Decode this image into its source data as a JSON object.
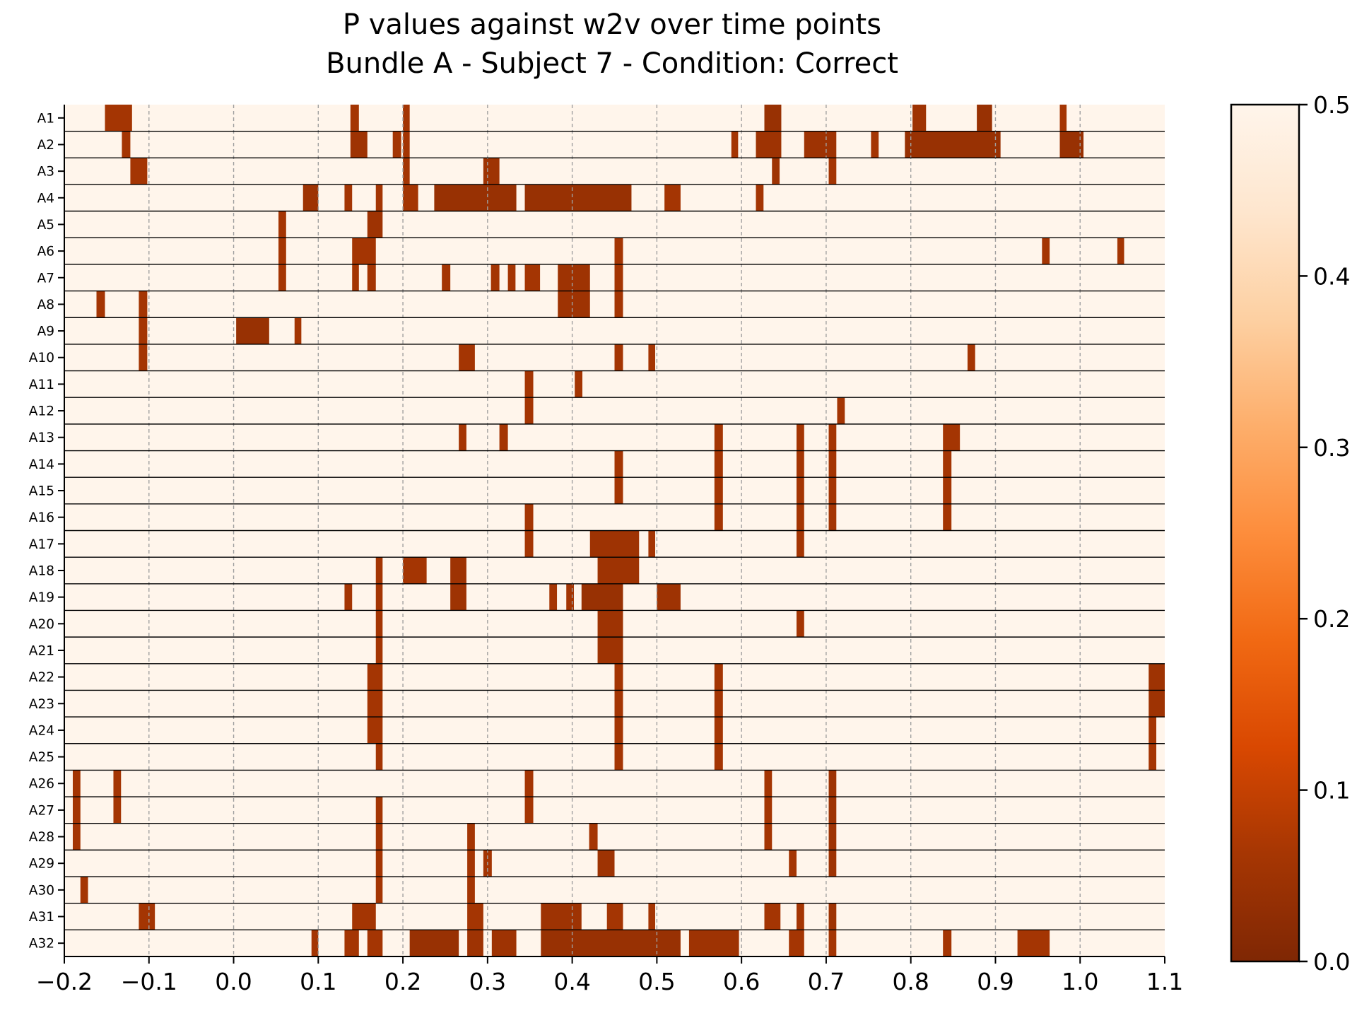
{
  "chart_data": {
    "type": "heatmap",
    "title": [
      "P values against w2v over time points",
      "Bundle A - Subject 7 - Condition: Correct"
    ],
    "xlabel": "",
    "ylabel": "",
    "xlim": [
      -0.2,
      1.1
    ],
    "x_ticks": [
      -0.2,
      -0.1,
      0.0,
      0.1,
      0.2,
      0.3,
      0.4,
      0.5,
      0.6,
      0.7,
      0.8,
      0.9,
      1.0,
      1.1
    ],
    "x_tick_labels": [
      "−0.2",
      "−0.1",
      "0.0",
      "0.1",
      "0.2",
      "0.3",
      "0.4",
      "0.5",
      "0.6",
      "0.7",
      "0.8",
      "0.9",
      "1.0",
      "1.1"
    ],
    "grid": "vertical dashed at x ticks",
    "colormap": "Oranges (reversed): dark brown = 0.0, pale cream = 0.5",
    "colorbar": {
      "range": [
        0.0,
        0.5
      ],
      "ticks": [
        0.0,
        0.1,
        0.2,
        0.3,
        0.4,
        0.5
      ],
      "tick_labels": [
        "0.0",
        "0.1",
        "0.2",
        "0.3",
        "0.4",
        "0.5"
      ],
      "colors": [
        "#7f2704",
        "#a63603",
        "#d94801",
        "#f16913",
        "#fd8d3c",
        "#fdae6b",
        "#fdd0a2",
        "#fee6ce",
        "#fff5eb"
      ]
    },
    "background_value": 0.5,
    "rows": [
      "A1",
      "A2",
      "A3",
      "A4",
      "A5",
      "A6",
      "A7",
      "A8",
      "A9",
      "A10",
      "A11",
      "A12",
      "A13",
      "A14",
      "A15",
      "A16",
      "A17",
      "A18",
      "A19",
      "A20",
      "A21",
      "A22",
      "A23",
      "A24",
      "A25",
      "A26",
      "A27",
      "A28",
      "A29",
      "A30",
      "A31",
      "A32"
    ],
    "significant_segments": {
      "A1": [
        [
          -0.152,
          -0.12,
          0.06
        ],
        [
          0.138,
          0.148,
          0.06
        ],
        [
          0.2,
          0.208,
          0.06
        ],
        [
          0.627,
          0.647,
          0.04
        ],
        [
          0.802,
          0.818,
          0.05
        ],
        [
          0.878,
          0.896,
          0.04
        ],
        [
          0.976,
          0.984,
          0.06
        ]
      ],
      "A2": [
        [
          -0.132,
          -0.122,
          0.06
        ],
        [
          0.138,
          0.158,
          0.05
        ],
        [
          0.188,
          0.198,
          0.06
        ],
        [
          0.2,
          0.208,
          0.06
        ],
        [
          0.588,
          0.596,
          0.06
        ],
        [
          0.617,
          0.647,
          0.05
        ],
        [
          0.674,
          0.712,
          0.05
        ],
        [
          0.753,
          0.762,
          0.06
        ],
        [
          0.793,
          0.906,
          0.04
        ],
        [
          0.976,
          1.004,
          0.04
        ]
      ],
      "A3": [
        [
          -0.122,
          -0.102,
          0.06
        ],
        [
          0.2,
          0.208,
          0.06
        ],
        [
          0.295,
          0.314,
          0.05
        ],
        [
          0.636,
          0.645,
          0.05
        ],
        [
          0.703,
          0.712,
          0.06
        ]
      ],
      "A4": [
        [
          0.082,
          0.1,
          0.05
        ],
        [
          0.131,
          0.14,
          0.06
        ],
        [
          0.168,
          0.176,
          0.06
        ],
        [
          0.2,
          0.218,
          0.06
        ],
        [
          0.237,
          0.334,
          0.04
        ],
        [
          0.344,
          0.47,
          0.04
        ],
        [
          0.509,
          0.528,
          0.06
        ],
        [
          0.617,
          0.626,
          0.06
        ]
      ],
      "A5": [
        [
          0.053,
          0.062,
          0.06
        ],
        [
          0.158,
          0.176,
          0.05
        ]
      ],
      "A6": [
        [
          0.053,
          0.062,
          0.06
        ],
        [
          0.14,
          0.168,
          0.06
        ],
        [
          0.45,
          0.46,
          0.06
        ],
        [
          0.955,
          0.964,
          0.06
        ],
        [
          1.044,
          1.052,
          0.06
        ]
      ],
      "A7": [
        [
          0.053,
          0.062,
          0.06
        ],
        [
          0.14,
          0.148,
          0.06
        ],
        [
          0.158,
          0.168,
          0.06
        ],
        [
          0.246,
          0.256,
          0.06
        ],
        [
          0.304,
          0.314,
          0.06
        ],
        [
          0.324,
          0.333,
          0.06
        ],
        [
          0.344,
          0.362,
          0.06
        ],
        [
          0.383,
          0.421,
          0.05
        ],
        [
          0.45,
          0.46,
          0.06
        ]
      ],
      "A8": [
        [
          -0.162,
          -0.152,
          0.06
        ],
        [
          -0.112,
          -0.102,
          0.06
        ],
        [
          0.383,
          0.421,
          0.05
        ],
        [
          0.45,
          0.46,
          0.06
        ]
      ],
      "A9": [
        [
          -0.112,
          -0.102,
          0.06
        ],
        [
          0.003,
          0.042,
          0.04
        ],
        [
          0.072,
          0.08,
          0.06
        ]
      ],
      "A10": [
        [
          -0.112,
          -0.102,
          0.06
        ],
        [
          0.266,
          0.285,
          0.06
        ],
        [
          0.45,
          0.46,
          0.06
        ],
        [
          0.49,
          0.498,
          0.06
        ],
        [
          0.867,
          0.876,
          0.06
        ]
      ],
      "A11": [
        [
          0.344,
          0.354,
          0.06
        ],
        [
          0.403,
          0.412,
          0.06
        ]
      ],
      "A12": [
        [
          0.344,
          0.354,
          0.06
        ],
        [
          0.713,
          0.722,
          0.06
        ]
      ],
      "A13": [
        [
          0.266,
          0.275,
          0.06
        ],
        [
          0.314,
          0.324,
          0.06
        ],
        [
          0.568,
          0.578,
          0.06
        ],
        [
          0.665,
          0.674,
          0.06
        ],
        [
          0.703,
          0.712,
          0.06
        ],
        [
          0.838,
          0.858,
          0.06
        ]
      ],
      "A14": [
        [
          0.45,
          0.46,
          0.06
        ],
        [
          0.568,
          0.578,
          0.06
        ],
        [
          0.665,
          0.674,
          0.06
        ],
        [
          0.703,
          0.712,
          0.06
        ],
        [
          0.838,
          0.848,
          0.06
        ]
      ],
      "A15": [
        [
          0.45,
          0.46,
          0.06
        ],
        [
          0.568,
          0.578,
          0.06
        ],
        [
          0.665,
          0.674,
          0.06
        ],
        [
          0.703,
          0.712,
          0.06
        ],
        [
          0.838,
          0.848,
          0.06
        ]
      ],
      "A16": [
        [
          0.344,
          0.354,
          0.06
        ],
        [
          0.568,
          0.578,
          0.06
        ],
        [
          0.665,
          0.674,
          0.06
        ],
        [
          0.703,
          0.712,
          0.06
        ],
        [
          0.838,
          0.848,
          0.06
        ]
      ],
      "A17": [
        [
          0.344,
          0.354,
          0.06
        ],
        [
          0.421,
          0.479,
          0.05
        ],
        [
          0.49,
          0.498,
          0.06
        ],
        [
          0.665,
          0.674,
          0.06
        ]
      ],
      "A18": [
        [
          0.168,
          0.176,
          0.06
        ],
        [
          0.2,
          0.228,
          0.06
        ],
        [
          0.256,
          0.275,
          0.05
        ],
        [
          0.43,
          0.479,
          0.05
        ]
      ],
      "A19": [
        [
          0.131,
          0.14,
          0.06
        ],
        [
          0.168,
          0.176,
          0.06
        ],
        [
          0.256,
          0.275,
          0.05
        ],
        [
          0.373,
          0.382,
          0.06
        ],
        [
          0.393,
          0.402,
          0.06
        ],
        [
          0.411,
          0.46,
          0.04
        ],
        [
          0.5,
          0.528,
          0.05
        ]
      ],
      "A20": [
        [
          0.168,
          0.176,
          0.06
        ],
        [
          0.43,
          0.46,
          0.05
        ],
        [
          0.665,
          0.674,
          0.06
        ]
      ],
      "A21": [
        [
          0.168,
          0.176,
          0.06
        ],
        [
          0.43,
          0.46,
          0.05
        ]
      ],
      "A22": [
        [
          0.158,
          0.176,
          0.06
        ],
        [
          0.45,
          0.46,
          0.06
        ],
        [
          0.568,
          0.578,
          0.06
        ],
        [
          1.081,
          1.1,
          0.05
        ]
      ],
      "A23": [
        [
          0.158,
          0.176,
          0.06
        ],
        [
          0.45,
          0.46,
          0.06
        ],
        [
          0.568,
          0.578,
          0.06
        ],
        [
          1.081,
          1.1,
          0.05
        ]
      ],
      "A24": [
        [
          0.158,
          0.176,
          0.06
        ],
        [
          0.45,
          0.46,
          0.06
        ],
        [
          0.568,
          0.578,
          0.06
        ],
        [
          1.081,
          1.09,
          0.06
        ]
      ],
      "A25": [
        [
          0.168,
          0.176,
          0.06
        ],
        [
          0.45,
          0.46,
          0.06
        ],
        [
          0.568,
          0.578,
          0.06
        ],
        [
          1.081,
          1.09,
          0.06
        ]
      ],
      "A26": [
        [
          -0.19,
          -0.181,
          0.06
        ],
        [
          -0.142,
          -0.133,
          0.06
        ],
        [
          0.344,
          0.354,
          0.06
        ],
        [
          0.627,
          0.636,
          0.06
        ],
        [
          0.703,
          0.712,
          0.05
        ]
      ],
      "A27": [
        [
          -0.19,
          -0.181,
          0.06
        ],
        [
          -0.142,
          -0.133,
          0.06
        ],
        [
          0.168,
          0.176,
          0.06
        ],
        [
          0.344,
          0.354,
          0.06
        ],
        [
          0.627,
          0.636,
          0.06
        ],
        [
          0.703,
          0.712,
          0.05
        ]
      ],
      "A28": [
        [
          -0.19,
          -0.181,
          0.06
        ],
        [
          0.168,
          0.176,
          0.06
        ],
        [
          0.276,
          0.285,
          0.06
        ],
        [
          0.42,
          0.43,
          0.06
        ],
        [
          0.627,
          0.636,
          0.06
        ],
        [
          0.703,
          0.712,
          0.05
        ]
      ],
      "A29": [
        [
          0.168,
          0.176,
          0.06
        ],
        [
          0.276,
          0.285,
          0.06
        ],
        [
          0.295,
          0.305,
          0.06
        ],
        [
          0.43,
          0.45,
          0.05
        ],
        [
          0.656,
          0.665,
          0.06
        ],
        [
          0.703,
          0.712,
          0.05
        ]
      ],
      "A30": [
        [
          -0.181,
          -0.172,
          0.06
        ],
        [
          0.168,
          0.176,
          0.06
        ],
        [
          0.276,
          0.285,
          0.06
        ]
      ],
      "A31": [
        [
          -0.112,
          -0.093,
          0.06
        ],
        [
          0.14,
          0.168,
          0.06
        ],
        [
          0.276,
          0.295,
          0.06
        ],
        [
          0.363,
          0.411,
          0.05
        ],
        [
          0.441,
          0.46,
          0.06
        ],
        [
          0.49,
          0.498,
          0.06
        ],
        [
          0.627,
          0.646,
          0.06
        ],
        [
          0.665,
          0.674,
          0.06
        ],
        [
          0.703,
          0.712,
          0.05
        ]
      ],
      "A32": [
        [
          0.092,
          0.1,
          0.06
        ],
        [
          0.131,
          0.148,
          0.06
        ],
        [
          0.158,
          0.176,
          0.06
        ],
        [
          0.208,
          0.266,
          0.04
        ],
        [
          0.276,
          0.295,
          0.05
        ],
        [
          0.305,
          0.334,
          0.05
        ],
        [
          0.363,
          0.528,
          0.04
        ],
        [
          0.538,
          0.597,
          0.05
        ],
        [
          0.656,
          0.674,
          0.06
        ],
        [
          0.703,
          0.712,
          0.06
        ],
        [
          0.838,
          0.848,
          0.06
        ],
        [
          0.926,
          0.964,
          0.06
        ]
      ]
    }
  }
}
